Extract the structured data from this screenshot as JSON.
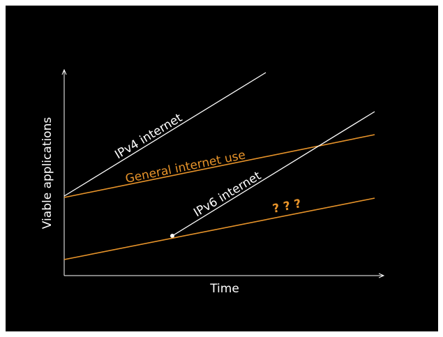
{
  "colors": {
    "background": "#000000",
    "white": "#ffffff",
    "orange": "#e8942a"
  },
  "axes": {
    "x_label": "Time",
    "y_label": "Viable applications"
  },
  "lines": {
    "ipv4": "IPv4 internet",
    "general": "General internet use",
    "ipv6": "IPv6 internet",
    "unknown": "? ? ?"
  }
}
